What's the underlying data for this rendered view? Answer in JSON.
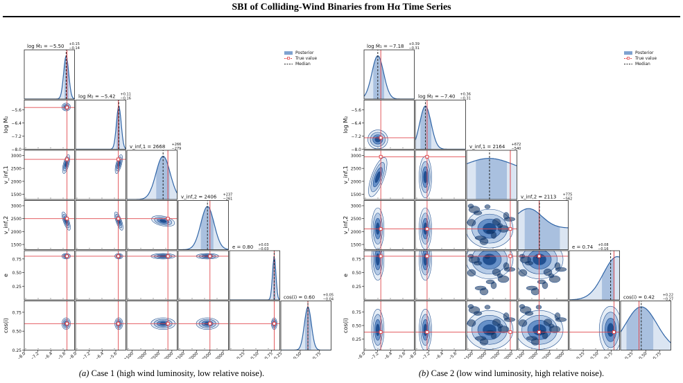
{
  "figure_title": "SBI of Colliding-Wind Binaries from Hα Time Series",
  "captions": [
    {
      "label": "(a)",
      "text": "Case 1 (high wind luminosity, low relative noise)."
    },
    {
      "label": "(b)",
      "text": "Case 2 (low wind luminosity, high relative noise)."
    }
  ],
  "legend": [
    {
      "label": "Posterior",
      "kind": "patch"
    },
    {
      "label": "True value",
      "kind": "true"
    },
    {
      "label": "Median",
      "kind": "median"
    }
  ],
  "colors": {
    "posterior_fill": "#7fa2d0",
    "posterior_line": "#2f64a6",
    "dark": "#0b2c5a",
    "true_value": "#e0474c",
    "median": "#222222"
  },
  "axis_labels": [
    "log Ṁ₁",
    "log Ṁ₂",
    "v_inf,1",
    "v_inf,2",
    "e",
    "cos(i)"
  ],
  "chart_data": [
    {
      "type": "corner",
      "panel": "(a)",
      "ranges": [
        [
          -8.0,
          -5.0
        ],
        [
          -8.0,
          -5.0
        ],
        [
          1300,
          3200
        ],
        [
          1300,
          3200
        ],
        [
          0.0,
          0.9
        ],
        [
          0.25,
          0.9
        ]
      ],
      "ticks": [
        {
          "values": [
            -8.0,
            -7.2,
            -6.4,
            -5.6
          ],
          "labels": [
            "−8.0",
            "−7.2",
            "−6.4",
            "−5.6"
          ]
        },
        {
          "values": [
            -8.0,
            -7.2,
            -6.4,
            -5.6
          ],
          "labels": [
            "−8.0",
            "−7.2",
            "−6.4",
            "−5.6"
          ]
        },
        {
          "values": [
            1500,
            2000,
            2500,
            3000
          ],
          "labels": [
            "1500",
            "2000",
            "2500",
            "3000"
          ]
        },
        {
          "values": [
            1500,
            2000,
            2500,
            3000
          ],
          "labels": [
            "1500",
            "2000",
            "2500",
            "3000"
          ]
        },
        {
          "values": [
            0.25,
            0.5,
            0.75
          ],
          "labels": [
            "0.25",
            "0.50",
            "0.75"
          ]
        },
        {
          "values": [
            0.25,
            0.5,
            0.75
          ],
          "labels": [
            "0.25",
            "0.50",
            "0.75"
          ]
        }
      ],
      "parameters": [
        {
          "symbol": "log Ṁ₁",
          "median": -5.5,
          "plus": 0.15,
          "minus": 0.14,
          "true": -5.45,
          "sigma": 0.15,
          "label": "log Ṁ₁ = −5.50",
          "err_plus": "+0.15",
          "err_minus": "−0.14"
        },
        {
          "symbol": "log Ṁ₂",
          "median": -5.42,
          "plus": 0.11,
          "minus": 0.16,
          "true": -5.45,
          "sigma": 0.14,
          "label": "log Ṁ₂ = −5.42",
          "err_plus": "+0.11",
          "err_minus": "−0.16"
        },
        {
          "symbol": "v_inf,1",
          "median": 2668,
          "plus": 266,
          "minus": 279,
          "true": 2850,
          "sigma": 270,
          "label": "v_inf,1 = 2668",
          "err_plus": "+266",
          "err_minus": "−279"
        },
        {
          "symbol": "v_inf,2",
          "median": 2406,
          "plus": 237,
          "minus": 261,
          "true": 2500,
          "sigma": 250,
          "label": "v_inf,2 = 2406",
          "err_plus": "+237",
          "err_minus": "−261"
        },
        {
          "symbol": "e",
          "median": 0.8,
          "plus": 0.03,
          "minus": 0.03,
          "true": 0.8,
          "sigma": 0.03,
          "label": "e = 0.80",
          "err_plus": "+0.03",
          "err_minus": "−0.03"
        },
        {
          "symbol": "cos(i)",
          "median": 0.6,
          "plus": 0.05,
          "minus": 0.04,
          "true": 0.6,
          "sigma": 0.045,
          "label": "cos(i) = 0.60",
          "err_plus": "+0.05",
          "err_minus": "−0.04"
        }
      ]
    },
    {
      "type": "corner",
      "panel": "(b)",
      "ranges": [
        [
          -8.0,
          -5.0
        ],
        [
          -8.0,
          -5.0
        ],
        [
          1300,
          3200
        ],
        [
          1300,
          3200
        ],
        [
          0.0,
          0.9
        ],
        [
          0.05,
          0.95
        ]
      ],
      "ticks": [
        {
          "values": [
            -8.0,
            -7.2,
            -6.4,
            -5.6
          ],
          "labels": [
            "−8.0",
            "−7.2",
            "−6.4",
            "−5.6"
          ]
        },
        {
          "values": [
            -8.0,
            -7.2,
            -6.4,
            -5.6
          ],
          "labels": [
            "−8.0",
            "−7.2",
            "−6.4",
            "−5.6"
          ]
        },
        {
          "values": [
            1500,
            2000,
            2500,
            3000
          ],
          "labels": [
            "1500",
            "2000",
            "2500",
            "3000"
          ]
        },
        {
          "values": [
            1500,
            2000,
            2500,
            3000
          ],
          "labels": [
            "1500",
            "2000",
            "2500",
            "3000"
          ]
        },
        {
          "values": [
            0.25,
            0.5,
            0.75
          ],
          "labels": [
            "0.25",
            "0.50",
            "0.75"
          ]
        },
        {
          "values": [
            0.25,
            0.5,
            0.75
          ],
          "labels": [
            "0.25",
            "0.50",
            "0.75"
          ]
        }
      ],
      "parameters": [
        {
          "symbol": "log Ṁ₁",
          "median": -7.18,
          "plus": 0.39,
          "minus": 0.31,
          "true": -7.0,
          "sigma": 0.35,
          "label": "log Ṁ₁ = −7.18",
          "err_plus": "+0.39",
          "err_minus": "−0.31"
        },
        {
          "symbol": "log Ṁ₂",
          "median": -7.4,
          "plus": 0.36,
          "minus": 0.31,
          "true": -7.3,
          "sigma": 0.34,
          "label": "log Ṁ₂ = −7.40",
          "err_plus": "+0.36",
          "err_minus": "−0.31"
        },
        {
          "symbol": "v_inf,1",
          "median": 2164,
          "plus": 672,
          "minus": 540,
          "true": 2950,
          "sigma": 750,
          "label": "v_inf,1 = 2164",
          "err_plus": "+672",
          "err_minus": "−540"
        },
        {
          "symbol": "v_inf,2",
          "median": 2113,
          "plus": 775,
          "minus": 562,
          "true": 2100,
          "sigma": 800,
          "label": "v_inf,2 = 2113",
          "err_plus": "+775",
          "err_minus": "−562"
        },
        {
          "symbol": "e",
          "median": 0.74,
          "plus": 0.08,
          "minus": 0.16,
          "true": 0.8,
          "sigma": 0.12,
          "label": "e = 0.74",
          "err_plus": "+0.08",
          "err_minus": "−0.16"
        },
        {
          "symbol": "cos(i)",
          "median": 0.42,
          "plus": 0.22,
          "minus": 0.27,
          "true": 0.38,
          "sigma": 0.28,
          "label": "cos(i) = 0.42",
          "err_plus": "+0.22",
          "err_minus": "−0.27"
        }
      ]
    }
  ]
}
